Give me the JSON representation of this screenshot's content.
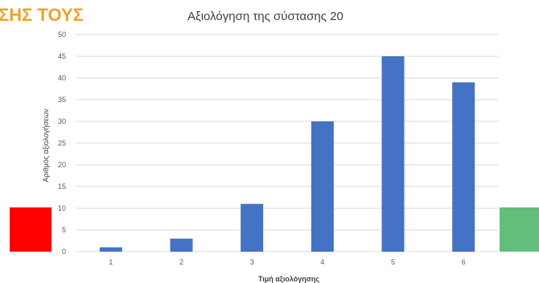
{
  "heading_fragment": "ΣΗΣ ΤΟΥΣ",
  "colors": {
    "heading": "#f0a030",
    "bar": "#4472c4",
    "grid": "#d9d9d9",
    "red_marker": "#ff0000",
    "green_marker": "#63be7b"
  },
  "chart_data": {
    "type": "bar",
    "title": "Αξιολόγηση της σύστασης 20",
    "xlabel": "Τιμή αξιολόγησης",
    "ylabel": "Αριθμός αξιολογήσεων",
    "categories": [
      "1",
      "2",
      "3",
      "4",
      "5",
      "6"
    ],
    "values": [
      1,
      3,
      11,
      30,
      45,
      39
    ],
    "ylim": [
      0,
      50
    ],
    "yticks": [
      0,
      5,
      10,
      15,
      20,
      25,
      30,
      35,
      40,
      45,
      50
    ],
    "grid": true,
    "legend": "none"
  }
}
